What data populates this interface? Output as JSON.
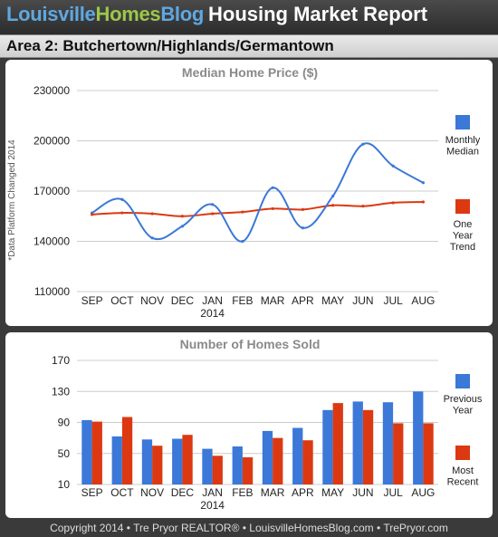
{
  "header": {
    "brand_part1": "Louisville",
    "brand_part2": "Homes",
    "brand_part3": "Blog",
    "title": "Housing Market Report"
  },
  "area_title": "Area 2: Butchertown/Highlands/Germantown",
  "footer": "Copyright  2014 • Tre Pryor REALTOR®  • LouisvilleHomesBlog.com • TrePryor.com",
  "colors": {
    "blue": "#3b78d8",
    "red": "#dc3912",
    "grid": "#cccccc",
    "panel_title": "#8a8a8a"
  },
  "chart_data": [
    {
      "type": "line",
      "title": "Median Home Price ($)",
      "side_note": "*Data Platform Changed 2014",
      "categories": [
        "SEP",
        "OCT",
        "NOV",
        "DEC",
        "JAN",
        "FEB",
        "MAR",
        "APR",
        "MAY",
        "JUN",
        "JUL",
        "AUG"
      ],
      "year_label": "2014",
      "y_ticks": [
        "230000",
        "200000",
        "170000",
        "140000",
        "110000"
      ],
      "ylim": [
        110000,
        230000
      ],
      "legend_position": "right",
      "series": [
        {
          "name_lines": [
            "Monthly",
            "Median"
          ],
          "color": "#3b78d8",
          "values": [
            157000,
            165000,
            142000,
            149000,
            162000,
            140000,
            172000,
            148000,
            167000,
            198000,
            185000,
            175000
          ]
        },
        {
          "name_lines": [
            "One",
            "Year",
            "Trend"
          ],
          "color": "#dc3912",
          "values": [
            156000,
            157000,
            156500,
            155000,
            156500,
            157500,
            159500,
            159000,
            161500,
            161000,
            163000,
            163500
          ]
        }
      ]
    },
    {
      "type": "bar",
      "title": "Number of Homes Sold",
      "categories": [
        "SEP",
        "OCT",
        "NOV",
        "DEC",
        "JAN",
        "FEB",
        "MAR",
        "APR",
        "MAY",
        "JUN",
        "JUL",
        "AUG"
      ],
      "year_label": "2014",
      "y_ticks": [
        "170",
        "130",
        "90",
        "50",
        "10"
      ],
      "ylim": [
        10,
        170
      ],
      "legend_position": "right",
      "series": [
        {
          "name_lines": [
            "Previous",
            "Year"
          ],
          "color": "#3b78d8",
          "values": [
            93,
            72,
            68,
            69,
            56,
            59,
            79,
            83,
            106,
            117,
            116,
            130
          ]
        },
        {
          "name_lines": [
            "Most",
            "Recent"
          ],
          "color": "#dc3912",
          "values": [
            91,
            97,
            60,
            74,
            47,
            45,
            70,
            67,
            115,
            106,
            89,
            89
          ]
        }
      ]
    }
  ]
}
